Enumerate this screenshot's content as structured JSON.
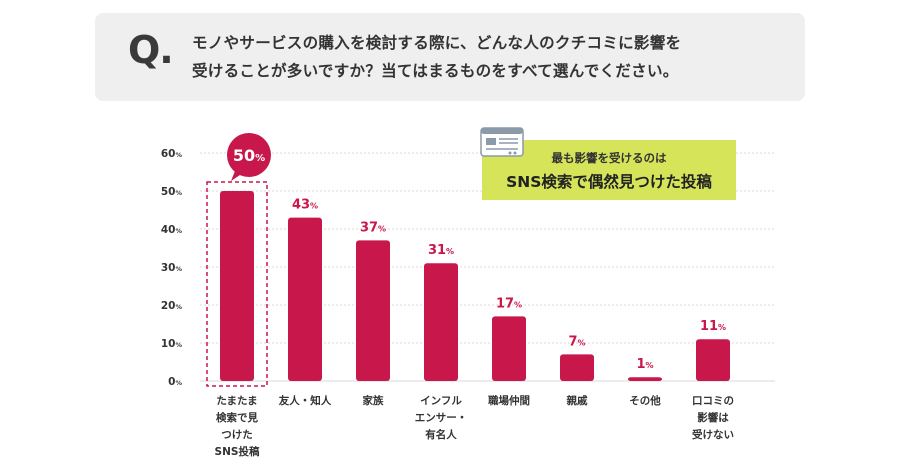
{
  "question": {
    "mark": "Q.",
    "line1": "モノやサービスの購入を検討する際に、どんな人のクチコミに影響を",
    "line2": "受けることが多いですか？当てはまるものをすべて選んでください。"
  },
  "callout": {
    "small": "最も影響を受けるのは",
    "big": "SNS検索で偶然見つけた投稿",
    "icon": "document-icon"
  },
  "colors": {
    "bar": "#c8174b",
    "label": "#c8174b",
    "callout_bg": "#d6e45a",
    "grid": "#d9d9d9"
  },
  "chart_data": {
    "type": "bar",
    "unit": "%",
    "ylim": [
      0,
      60
    ],
    "yticks": [
      0,
      10,
      20,
      30,
      40,
      50,
      60
    ],
    "grid": true,
    "categories": [
      [
        "たまたま",
        "検索で見",
        "つけた",
        "SNS投稿"
      ],
      [
        "友人・知人"
      ],
      [
        "家族"
      ],
      [
        "インフル",
        "エンサー・",
        "有名人"
      ],
      [
        "職場仲間"
      ],
      [
        "親戚"
      ],
      [
        "その他"
      ],
      [
        "口コミの",
        "影響は",
        "受けない"
      ]
    ],
    "values": [
      50,
      43,
      37,
      31,
      17,
      7,
      1,
      11
    ],
    "highlight_index": 0
  }
}
